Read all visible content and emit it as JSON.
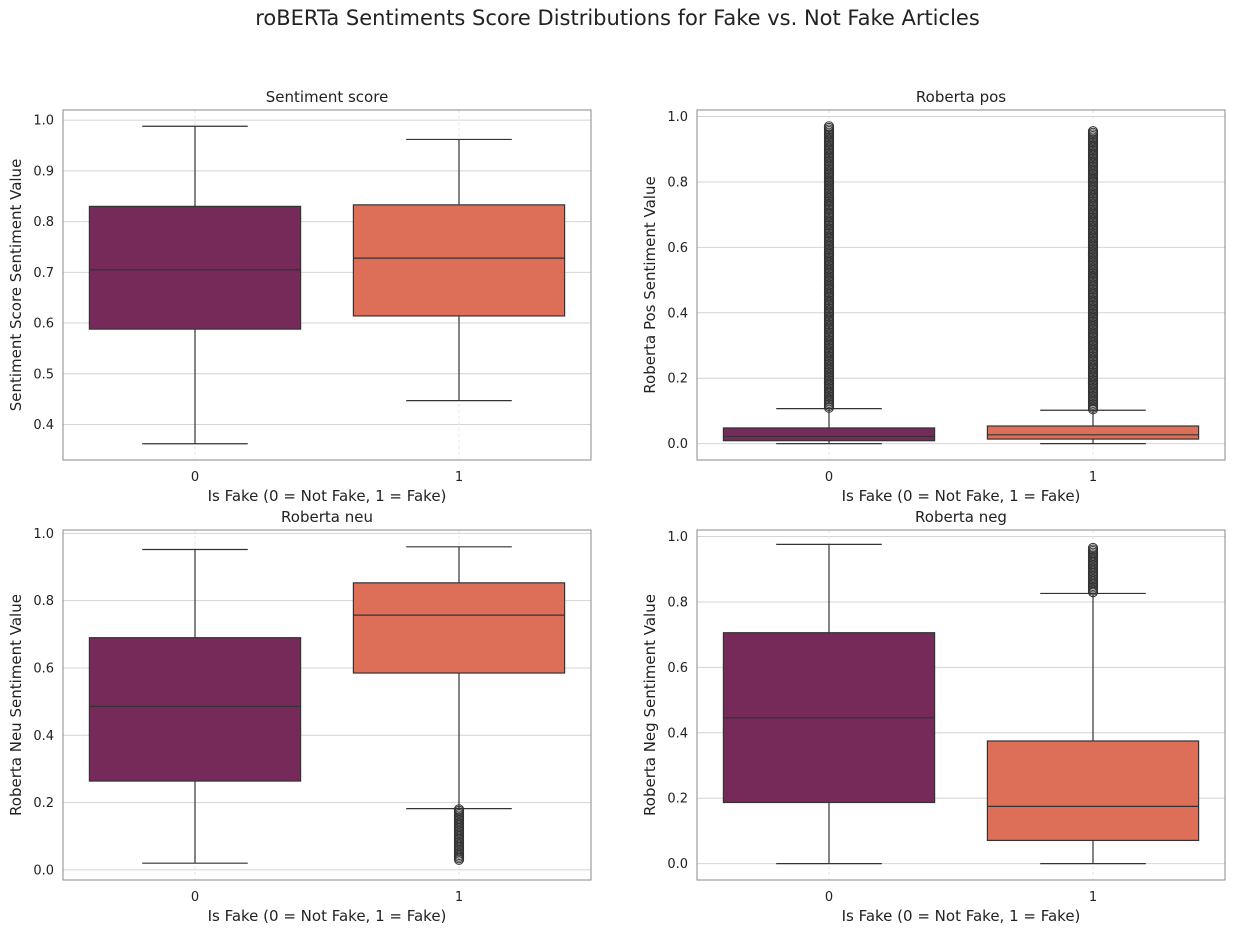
{
  "figure": {
    "title": "roBERTa Sentiments Score Distributions for Fake vs. Not Fake Articles",
    "colors": {
      "not_fake": "#762a5a",
      "fake": "#dd6e58",
      "grid": "#d4d4d4",
      "line": "#333333",
      "frame": "#8a8a8a"
    }
  },
  "chart_data": [
    {
      "type": "box",
      "title": "Sentiment score",
      "xlabel": "Is Fake (0 = Not Fake, 1 = Fake)",
      "ylabel": "Sentiment Score Sentiment Value",
      "categories": [
        "0",
        "1"
      ],
      "ylim": [
        0.33,
        1.02
      ],
      "yticks": [
        0.4,
        0.5,
        0.6,
        0.7,
        0.8,
        0.9,
        1.0
      ],
      "tick_labels": [
        "0.4",
        "0.5",
        "0.6",
        "0.7",
        "0.8",
        "0.9",
        "1.0"
      ],
      "grid": true,
      "boxes": [
        {
          "category": "0",
          "whisker_low": 0.362,
          "q1": 0.588,
          "median": 0.705,
          "q3": 0.83,
          "whisker_high": 0.988,
          "outliers": []
        },
        {
          "category": "1",
          "whisker_low": 0.447,
          "q1": 0.614,
          "median": 0.728,
          "q3": 0.833,
          "whisker_high": 0.962,
          "outliers": []
        }
      ]
    },
    {
      "type": "box",
      "title": "Roberta pos",
      "xlabel": "Is Fake (0 = Not Fake, 1 = Fake)",
      "ylabel": "Roberta Pos Sentiment Value",
      "categories": [
        "0",
        "1"
      ],
      "ylim": [
        -0.05,
        1.02
      ],
      "yticks": [
        0.0,
        0.2,
        0.4,
        0.6,
        0.8,
        1.0
      ],
      "tick_labels": [
        "0.0",
        "0.2",
        "0.4",
        "0.6",
        "0.8",
        "1.0"
      ],
      "grid": true,
      "boxes": [
        {
          "category": "0",
          "whisker_low": 0.0,
          "q1": 0.009,
          "median": 0.022,
          "q3": 0.048,
          "whisker_high": 0.107,
          "outlier_range": [
            0.11,
            0.97
          ]
        },
        {
          "category": "1",
          "whisker_low": 0.0,
          "q1": 0.014,
          "median": 0.027,
          "q3": 0.054,
          "whisker_high": 0.102,
          "outlier_range": [
            0.105,
            0.955
          ]
        }
      ]
    },
    {
      "type": "box",
      "title": "Roberta neu",
      "xlabel": "Is Fake (0 = Not Fake, 1 = Fake)",
      "ylabel": "Roberta Neu Sentiment Value",
      "categories": [
        "0",
        "1"
      ],
      "ylim": [
        -0.03,
        1.01
      ],
      "yticks": [
        0.0,
        0.2,
        0.4,
        0.6,
        0.8,
        1.0
      ],
      "tick_labels": [
        "0.0",
        "0.2",
        "0.4",
        "0.6",
        "0.8",
        "1.0"
      ],
      "grid": true,
      "boxes": [
        {
          "category": "0",
          "whisker_low": 0.02,
          "q1": 0.264,
          "median": 0.486,
          "q3": 0.69,
          "whisker_high": 0.952,
          "outliers": []
        },
        {
          "category": "1",
          "whisker_low": 0.182,
          "q1": 0.585,
          "median": 0.757,
          "q3": 0.853,
          "whisker_high": 0.96,
          "outlier_range": [
            0.03,
            0.18
          ]
        }
      ]
    },
    {
      "type": "box",
      "title": "Roberta neg",
      "xlabel": "Is Fake (0 = Not Fake, 1 = Fake)",
      "ylabel": "Roberta Neg Sentiment Value",
      "categories": [
        "0",
        "1"
      ],
      "ylim": [
        -0.05,
        1.02
      ],
      "yticks": [
        0.0,
        0.2,
        0.4,
        0.6,
        0.8,
        1.0
      ],
      "tick_labels": [
        "0.0",
        "0.2",
        "0.4",
        "0.6",
        "0.8",
        "1.0"
      ],
      "grid": true,
      "boxes": [
        {
          "category": "0",
          "whisker_low": 0.0,
          "q1": 0.187,
          "median": 0.446,
          "q3": 0.706,
          "whisker_high": 0.976,
          "outliers": []
        },
        {
          "category": "1",
          "whisker_low": 0.0,
          "q1": 0.071,
          "median": 0.175,
          "q3": 0.375,
          "whisker_high": 0.826,
          "outlier_range": [
            0.83,
            0.965
          ]
        }
      ]
    }
  ]
}
